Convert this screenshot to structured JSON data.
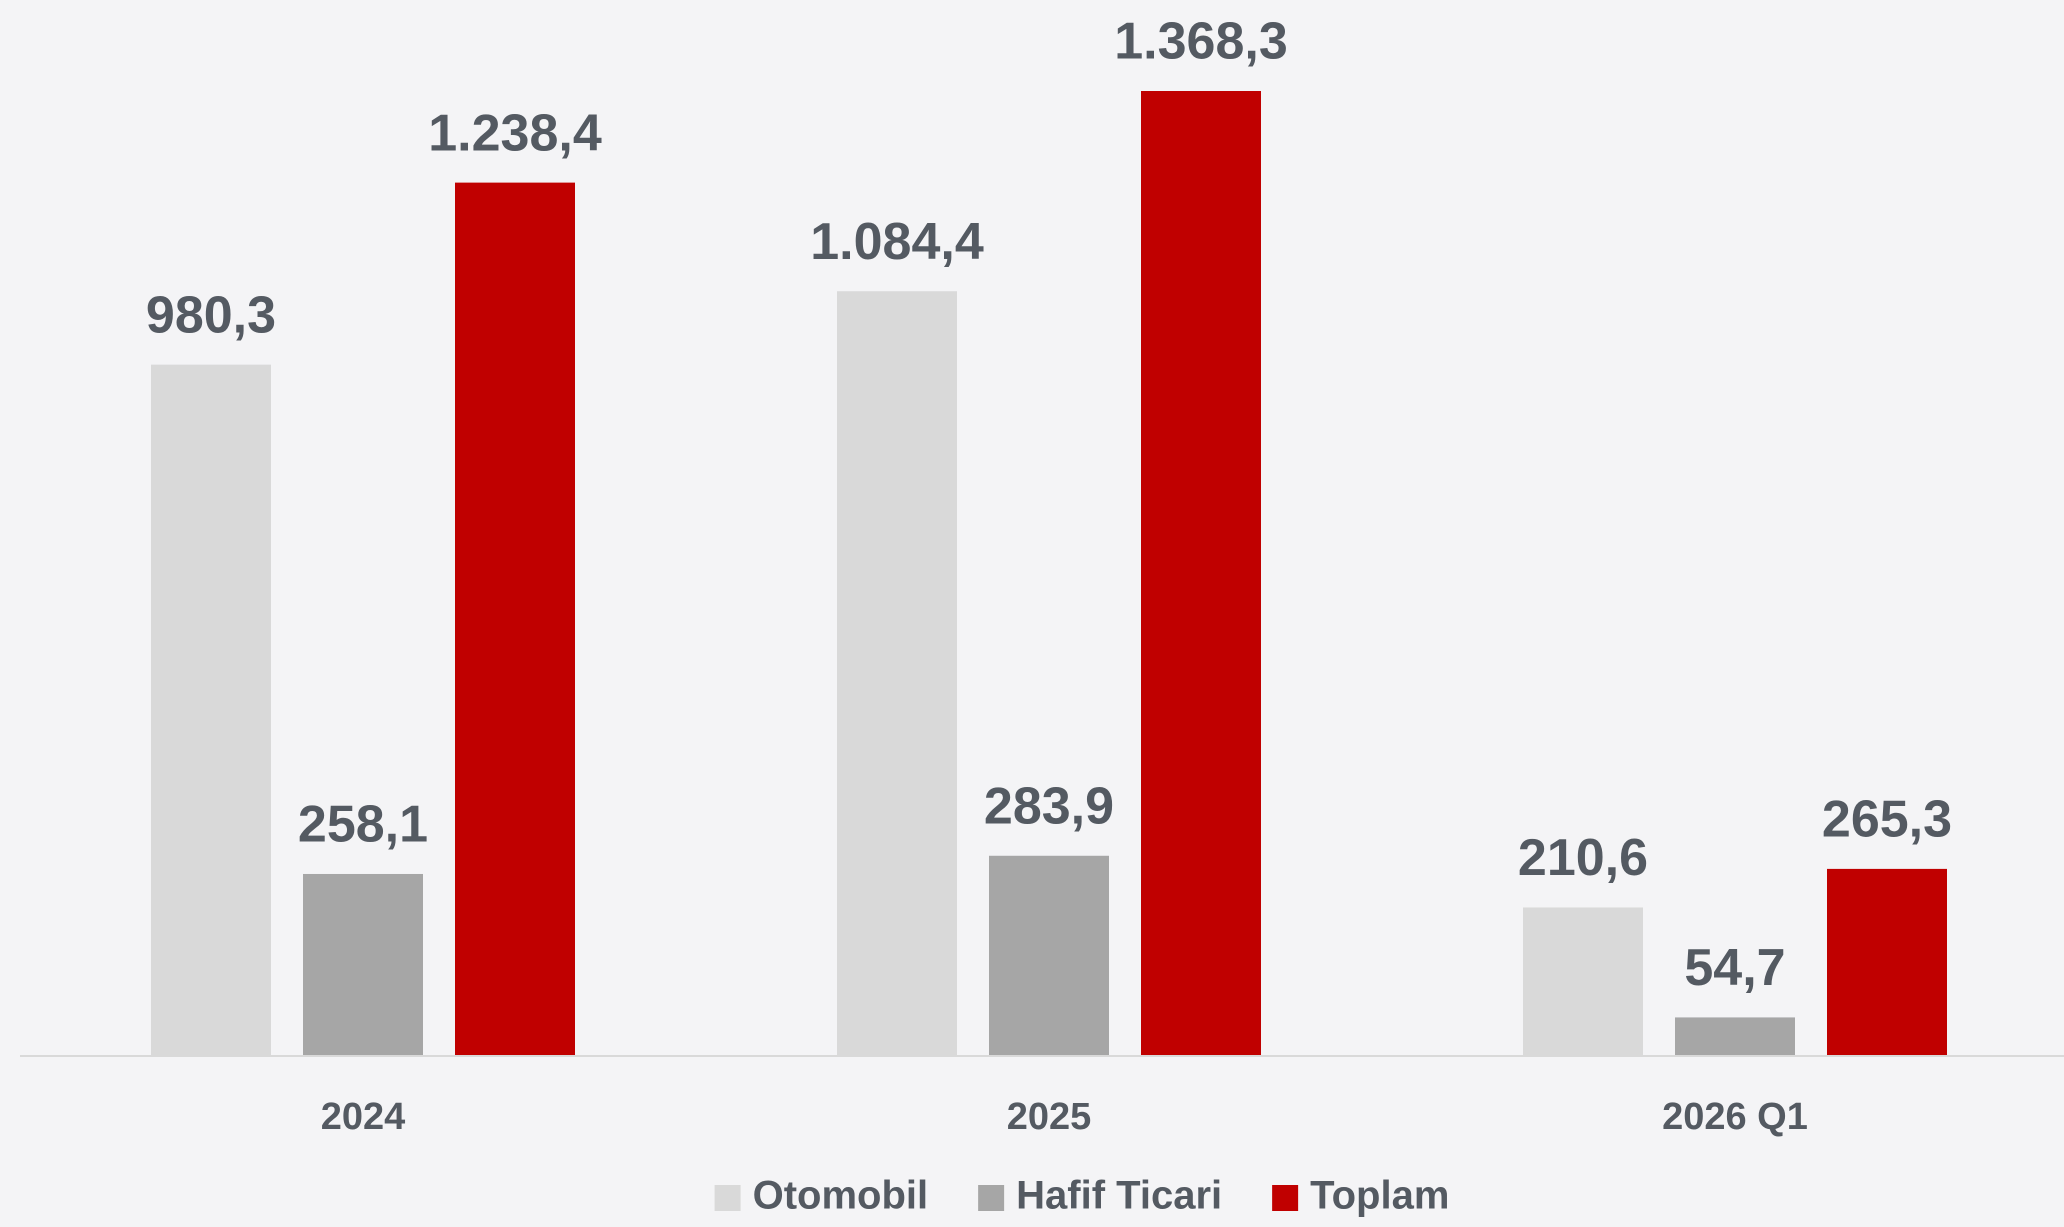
{
  "chart_data": {
    "type": "bar",
    "categories": [
      "2024",
      "2025",
      "2026 Q1"
    ],
    "series": [
      {
        "name": "Otomobil",
        "color": "#d9d9d9",
        "values": [
          980.3,
          1084.4,
          210.6
        ],
        "value_labels": [
          "980,3",
          "1.084,4",
          "210,6"
        ]
      },
      {
        "name": "Hafif Ticari",
        "color": "#a6a6a6",
        "values": [
          258.1,
          283.9,
          54.7
        ],
        "value_labels": [
          "258,1",
          "283,9",
          "54,7"
        ]
      },
      {
        "name": "Toplam",
        "color": "#c00000",
        "values": [
          1238.4,
          1368.3,
          265.3
        ],
        "value_labels": [
          "1.238,4",
          "1.368,3",
          "265,3"
        ]
      }
    ],
    "legend": "bottom"
  }
}
